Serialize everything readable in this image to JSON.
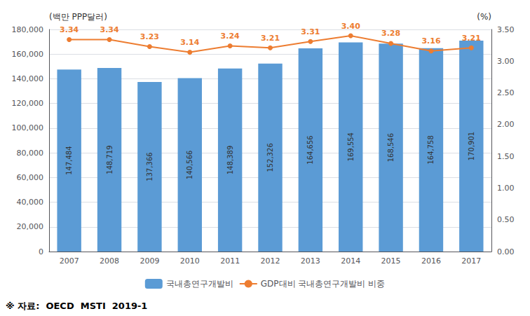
{
  "chart_data": {
    "type": "bar",
    "categories": [
      "2007",
      "2008",
      "2009",
      "2010",
      "2011",
      "2012",
      "2013",
      "2014",
      "2015",
      "2016",
      "2017"
    ],
    "series": [
      {
        "name": "국내총연구개발비",
        "type": "bar",
        "color": "#5B9BD5",
        "values": [
          147484,
          148719,
          137366,
          140566,
          148389,
          152326,
          164656,
          169554,
          168546,
          164758,
          170901
        ],
        "data_labels": true,
        "value_labels": [
          "147,484",
          "148,719",
          "137,366",
          "140,566",
          "148,389",
          "152,326",
          "164,656",
          "169,554",
          "168,546",
          "164,758",
          "170,901"
        ]
      },
      {
        "name": "GDP대비 국내총연구개발비 비중",
        "type": "line",
        "axis": "y2",
        "color": "#ED7D31",
        "marker": "circle",
        "values": [
          3.34,
          3.34,
          3.23,
          3.14,
          3.24,
          3.21,
          3.31,
          3.4,
          3.28,
          3.16,
          3.21
        ],
        "data_labels": true,
        "value_labels": [
          "3.34",
          "3.34",
          "3.23",
          "3.14",
          "3.24",
          "3.21",
          "3.31",
          "3.40",
          "3.28",
          "3.16",
          "3.21"
        ]
      }
    ],
    "ylabel": "(백만 PPP달러)",
    "y2label": "(%)",
    "ylim": [
      0,
      180000
    ],
    "yticks": [
      0,
      {
        "value": 20000,
        "label": "20,000"
      },
      {
        "value": 40000,
        "label": "40,000"
      },
      {
        "value": 60000,
        "label": "60,000"
      },
      {
        "value": 80000,
        "label": "80,000"
      },
      {
        "value": 100000,
        "label": "100,000"
      },
      {
        "value": 120000,
        "label": "120,000"
      },
      {
        "value": 140000,
        "label": "140,000"
      },
      {
        "value": 160000,
        "label": "160,000"
      },
      {
        "value": 180000,
        "label": "180,000"
      }
    ],
    "y2lim": [
      0.0,
      3.5
    ],
    "y2ticks": [
      {
        "value": 0,
        "label": "0.00"
      },
      {
        "value": 0.5,
        "label": "0.50"
      },
      {
        "value": 1,
        "label": "1.00"
      },
      {
        "value": 1.5,
        "label": "1.50"
      },
      {
        "value": 2,
        "label": "2.00"
      },
      {
        "value": 2.5,
        "label": "2.50"
      },
      {
        "value": 3,
        "label": "3.00"
      },
      {
        "value": 3.5,
        "label": "3.50"
      }
    ],
    "annotations": [
      "※ 자료:  OECD  MSTI  2019-1"
    ],
    "grid": true,
    "legend": "bottom"
  }
}
